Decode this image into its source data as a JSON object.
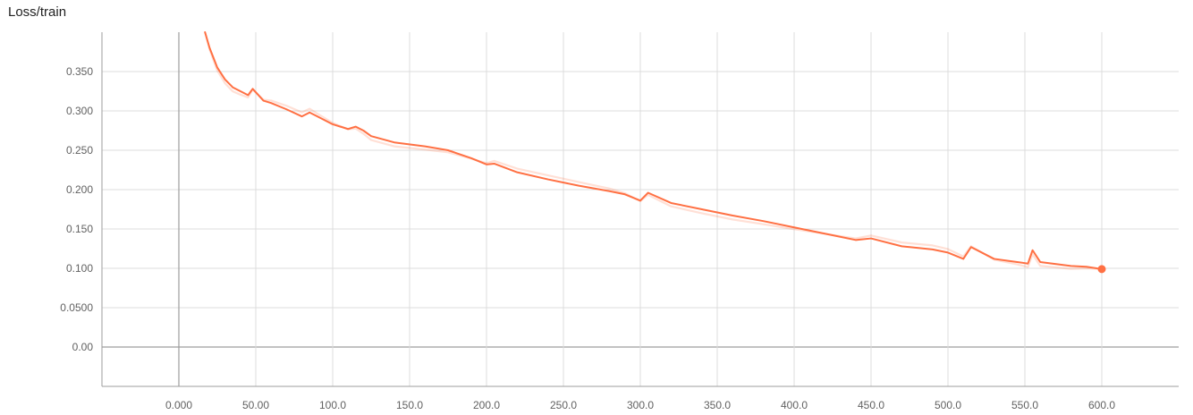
{
  "chart_data": {
    "type": "line",
    "title": "Loss/train",
    "xlabel": "",
    "ylabel": "",
    "xlim": [
      -50,
      650
    ],
    "ylim": [
      -0.05,
      0.4
    ],
    "x_ticks": [
      0,
      50,
      100,
      150,
      200,
      250,
      300,
      350,
      400,
      450,
      500,
      550,
      600
    ],
    "x_tick_labels": [
      "0.000",
      "50.00",
      "100.0",
      "150.0",
      "200.0",
      "250.0",
      "300.0",
      "350.0",
      "400.0",
      "450.0",
      "500.0",
      "550.0",
      "600.0"
    ],
    "y_ticks": [
      0,
      0.05,
      0.1,
      0.15,
      0.2,
      0.25,
      0.3,
      0.35
    ],
    "y_tick_labels": [
      "0.00",
      "0.0500",
      "0.100",
      "0.150",
      "0.200",
      "0.250",
      "0.300",
      "0.350"
    ],
    "grid": true,
    "legend": "none",
    "series": [
      {
        "color": "#ff7043",
        "x": [
          17,
          20,
          25,
          30,
          35,
          40,
          45,
          48,
          55,
          60,
          70,
          80,
          85,
          90,
          100,
          110,
          115,
          120,
          125,
          140,
          160,
          175,
          190,
          200,
          205,
          220,
          240,
          260,
          280,
          290,
          300,
          305,
          320,
          340,
          360,
          380,
          400,
          420,
          440,
          450,
          470,
          490,
          500,
          510,
          515,
          530,
          545,
          552,
          555,
          560,
          580,
          590,
          600
        ],
        "y": [
          0.4,
          0.38,
          0.355,
          0.34,
          0.33,
          0.325,
          0.32,
          0.328,
          0.313,
          0.31,
          0.302,
          0.293,
          0.298,
          0.293,
          0.283,
          0.277,
          0.28,
          0.275,
          0.268,
          0.26,
          0.255,
          0.25,
          0.24,
          0.232,
          0.233,
          0.222,
          0.213,
          0.205,
          0.198,
          0.194,
          0.186,
          0.196,
          0.183,
          0.175,
          0.167,
          0.16,
          0.152,
          0.144,
          0.136,
          0.138,
          0.128,
          0.124,
          0.12,
          0.112,
          0.127,
          0.112,
          0.108,
          0.106,
          0.123,
          0.108,
          0.103,
          0.102,
          0.099
        ]
      }
    ]
  }
}
